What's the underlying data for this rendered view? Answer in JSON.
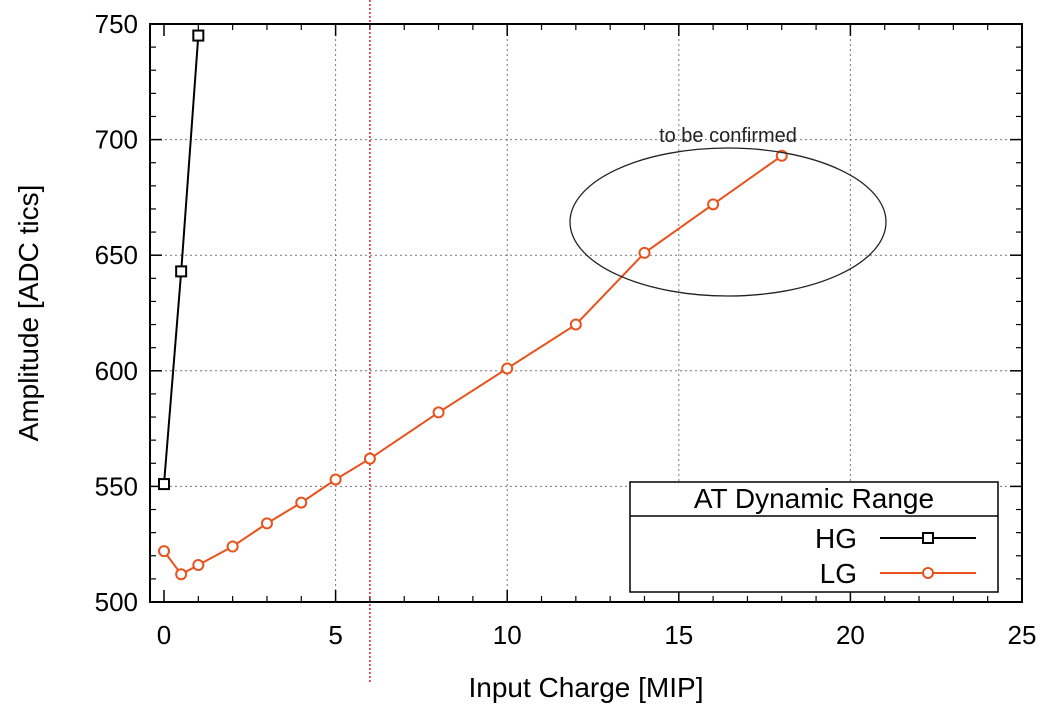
{
  "chart_data": {
    "type": "line",
    "title": "",
    "xlabel": "Input Charge [MIP]",
    "ylabel": "Amplitude [ADC tics]",
    "xlim": [
      0,
      25
    ],
    "ylim": [
      500,
      750
    ],
    "xticks": [
      0,
      5,
      10,
      15,
      20,
      25
    ],
    "yticks": [
      500,
      550,
      600,
      650,
      700,
      750
    ],
    "grid": true,
    "legend": {
      "title": "AT Dynamic Range",
      "placement": "bottom-right"
    },
    "series": [
      {
        "name": "HG",
        "color": "#000000",
        "marker": "square",
        "x": [
          0,
          0.5,
          1
        ],
        "y": [
          551,
          643,
          745
        ]
      },
      {
        "name": "LG",
        "color": "#e8521c",
        "marker": "circle",
        "x": [
          0,
          0.5,
          1,
          2,
          3,
          4,
          5,
          6,
          8,
          10,
          12,
          14,
          16,
          18
        ],
        "y": [
          522,
          512,
          516,
          524,
          534,
          543,
          553,
          562,
          582,
          601,
          620,
          651,
          672,
          693
        ]
      }
    ],
    "vertical_line": {
      "x": 6,
      "color": "#cc0000"
    },
    "annotations": [
      {
        "text": "to be confirmed"
      }
    ]
  }
}
